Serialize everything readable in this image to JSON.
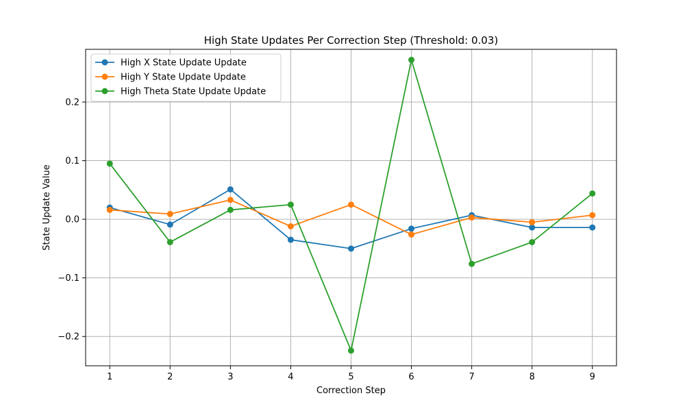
{
  "chart_data": {
    "type": "line",
    "title": "High State Updates Per Correction Step (Threshold: 0.03)",
    "xlabel": "Correction Step",
    "ylabel": "State Update Value",
    "x": [
      1,
      2,
      3,
      4,
      5,
      6,
      7,
      8,
      9
    ],
    "xlim": [
      0.6,
      9.4
    ],
    "ylim": [
      -0.25,
      0.29
    ],
    "xticks": [
      1,
      2,
      3,
      4,
      5,
      6,
      7,
      8,
      9
    ],
    "yticks": [
      -0.2,
      -0.1,
      0.0,
      0.1,
      0.2
    ],
    "ytick_labels": [
      "−0.2",
      "−0.1",
      "0.0",
      "0.1",
      "0.2"
    ],
    "grid": true,
    "legend_position": "top-left",
    "series": [
      {
        "name": "High X State Update Update",
        "color": "#1f77b4",
        "values": [
          0.02,
          -0.009,
          0.051,
          -0.035,
          -0.05,
          -0.016,
          0.007,
          -0.014,
          -0.014
        ]
      },
      {
        "name": "High Y State Update Update",
        "color": "#ff7f0e",
        "values": [
          0.016,
          0.009,
          0.033,
          -0.012,
          0.025,
          -0.026,
          0.003,
          -0.005,
          0.007
        ]
      },
      {
        "name": "High Theta State Update Update",
        "color": "#2ca02c",
        "values": [
          0.095,
          -0.039,
          0.016,
          0.025,
          -0.224,
          0.272,
          -0.076,
          -0.039,
          0.044
        ]
      }
    ]
  }
}
